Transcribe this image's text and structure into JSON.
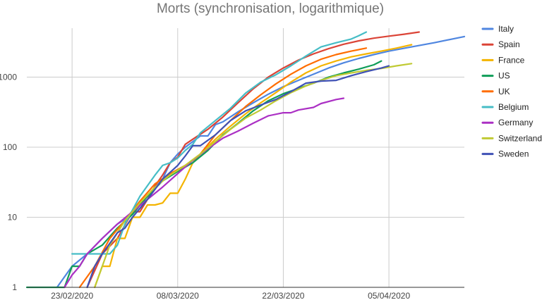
{
  "chart_data": {
    "type": "line",
    "title": "Morts (synchronisation, logarithmique)",
    "xlabel": "",
    "ylabel": "",
    "y_scale": "log",
    "ylim": [
      1,
      5000
    ],
    "y_ticks": [
      {
        "value": 1,
        "label": "1"
      },
      {
        "value": 10,
        "label": "10"
      },
      {
        "value": 100,
        "label": "100"
      },
      {
        "value": 1000,
        "label": "1000"
      }
    ],
    "xlim": [
      "2020-02-17",
      "2020-04-15"
    ],
    "x_ticks": [
      {
        "value": "2020-02-23",
        "label": "23/02/2020"
      },
      {
        "value": "2020-03-08",
        "label": "08/03/2020"
      },
      {
        "value": "2020-03-22",
        "label": "22/03/2020"
      },
      {
        "value": "2020-04-05",
        "label": "05/04/2020"
      }
    ],
    "grid": true,
    "legend_position": "right",
    "series": [
      {
        "name": "Italy",
        "color": "#4f86e0",
        "points": [
          [
            "2020-02-21",
            1
          ],
          [
            "2020-02-23",
            2
          ],
          [
            "2020-02-25",
            3
          ],
          [
            "2020-02-27",
            5
          ],
          [
            "2020-02-29",
            8
          ],
          [
            "2020-03-02",
            11
          ],
          [
            "2020-03-04",
            20
          ],
          [
            "2020-03-06",
            35
          ],
          [
            "2020-03-07",
            60
          ],
          [
            "2020-03-08",
            80
          ],
          [
            "2020-03-09",
            100
          ],
          [
            "2020-03-10",
            120
          ],
          [
            "2020-03-11",
            145
          ],
          [
            "2020-03-12",
            145
          ],
          [
            "2020-03-13",
            210
          ],
          [
            "2020-03-14",
            230
          ],
          [
            "2020-03-16",
            320
          ],
          [
            "2020-03-18",
            430
          ],
          [
            "2020-03-20",
            570
          ],
          [
            "2020-03-22",
            730
          ],
          [
            "2020-03-24",
            900
          ],
          [
            "2020-03-26",
            1100
          ],
          [
            "2020-03-28",
            1350
          ],
          [
            "2020-03-30",
            1600
          ],
          [
            "2020-04-01",
            1850
          ],
          [
            "2020-04-03",
            2100
          ],
          [
            "2020-04-05",
            2350
          ],
          [
            "2020-04-08",
            2700
          ],
          [
            "2020-04-11",
            3100
          ],
          [
            "2020-04-15",
            3800
          ]
        ]
      },
      {
        "name": "Spain",
        "color": "#db4437",
        "points": [
          [
            "2020-02-25",
            1
          ],
          [
            "2020-02-27",
            3
          ],
          [
            "2020-02-29",
            5
          ],
          [
            "2020-03-02",
            12
          ],
          [
            "2020-03-03",
            12
          ],
          [
            "2020-03-04",
            18
          ],
          [
            "2020-03-05",
            28
          ],
          [
            "2020-03-06",
            40
          ],
          [
            "2020-03-07",
            60
          ],
          [
            "2020-03-08",
            72
          ],
          [
            "2020-03-09",
            110
          ],
          [
            "2020-03-10",
            130
          ],
          [
            "2020-03-12",
            180
          ],
          [
            "2020-03-14",
            270
          ],
          [
            "2020-03-16",
            430
          ],
          [
            "2020-03-18",
            680
          ],
          [
            "2020-03-20",
            1000
          ],
          [
            "2020-03-22",
            1350
          ],
          [
            "2020-03-24",
            1750
          ],
          [
            "2020-03-26",
            2150
          ],
          [
            "2020-03-28",
            2550
          ],
          [
            "2020-03-30",
            2950
          ],
          [
            "2020-04-01",
            3300
          ],
          [
            "2020-04-03",
            3600
          ],
          [
            "2020-04-05",
            3850
          ],
          [
            "2020-04-07",
            4100
          ],
          [
            "2020-04-09",
            4400
          ]
        ]
      },
      {
        "name": "France",
        "color": "#f4b400",
        "points": [
          [
            "2020-02-26",
            1
          ],
          [
            "2020-02-27",
            2
          ],
          [
            "2020-02-28",
            2
          ],
          [
            "2020-02-29",
            5
          ],
          [
            "2020-03-01",
            5
          ],
          [
            "2020-03-02",
            10
          ],
          [
            "2020-03-03",
            10
          ],
          [
            "2020-03-04",
            15
          ],
          [
            "2020-03-05",
            15
          ],
          [
            "2020-03-06",
            16
          ],
          [
            "2020-03-07",
            22
          ],
          [
            "2020-03-08",
            22
          ],
          [
            "2020-03-09",
            35
          ],
          [
            "2020-03-10",
            60
          ],
          [
            "2020-03-11",
            80
          ],
          [
            "2020-03-13",
            130
          ],
          [
            "2020-03-15",
            200
          ],
          [
            "2020-03-17",
            300
          ],
          [
            "2020-03-19",
            430
          ],
          [
            "2020-03-21",
            600
          ],
          [
            "2020-03-23",
            850
          ],
          [
            "2020-03-25",
            1150
          ],
          [
            "2020-03-27",
            1450
          ],
          [
            "2020-03-29",
            1700
          ],
          [
            "2020-03-31",
            1950
          ],
          [
            "2020-04-02",
            2150
          ],
          [
            "2020-04-04",
            2350
          ],
          [
            "2020-04-06",
            2600
          ],
          [
            "2020-04-08",
            2900
          ]
        ]
      },
      {
        "name": "US",
        "color": "#0f9d58",
        "points": [
          [
            "2020-02-17",
            1
          ],
          [
            "2020-02-22",
            1
          ],
          [
            "2020-02-23",
            2
          ],
          [
            "2020-02-24",
            2
          ],
          [
            "2020-02-25",
            3
          ],
          [
            "2020-02-27",
            4
          ],
          [
            "2020-02-29",
            7
          ],
          [
            "2020-03-02",
            11
          ],
          [
            "2020-03-04",
            20
          ],
          [
            "2020-03-06",
            33
          ],
          [
            "2020-03-08",
            45
          ],
          [
            "2020-03-10",
            60
          ],
          [
            "2020-03-12",
            90
          ],
          [
            "2020-03-14",
            150
          ],
          [
            "2020-03-16",
            220
          ],
          [
            "2020-03-18",
            330
          ],
          [
            "2020-03-20",
            460
          ],
          [
            "2020-03-22",
            580
          ],
          [
            "2020-03-24",
            690
          ],
          [
            "2020-03-26",
            820
          ],
          [
            "2020-03-28",
            1000
          ],
          [
            "2020-03-30",
            1150
          ],
          [
            "2020-04-01",
            1300
          ],
          [
            "2020-04-03",
            1500
          ],
          [
            "2020-04-04",
            1700
          ]
        ]
      },
      {
        "name": "UK",
        "color": "#ff6d00",
        "points": [
          [
            "2020-02-24",
            1
          ],
          [
            "2020-02-26",
            2
          ],
          [
            "2020-02-28",
            5
          ],
          [
            "2020-03-01",
            9
          ],
          [
            "2020-03-03",
            17
          ],
          [
            "2020-03-05",
            30
          ],
          [
            "2020-03-07",
            42
          ],
          [
            "2020-03-09",
            55
          ],
          [
            "2020-03-11",
            80
          ],
          [
            "2020-03-13",
            150
          ],
          [
            "2020-03-15",
            240
          ],
          [
            "2020-03-17",
            380
          ],
          [
            "2020-03-19",
            560
          ],
          [
            "2020-03-21",
            800
          ],
          [
            "2020-03-23",
            1100
          ],
          [
            "2020-03-25",
            1450
          ],
          [
            "2020-03-27",
            1800
          ],
          [
            "2020-03-29",
            2100
          ],
          [
            "2020-03-31",
            2350
          ],
          [
            "2020-04-02",
            2600
          ]
        ]
      },
      {
        "name": "Belgium",
        "color": "#46bdc6",
        "points": [
          [
            "2020-02-23",
            3
          ],
          [
            "2020-02-24",
            3
          ],
          [
            "2020-02-28",
            3
          ],
          [
            "2020-02-29",
            4
          ],
          [
            "2020-03-01",
            8
          ],
          [
            "2020-03-03",
            20
          ],
          [
            "2020-03-05",
            40
          ],
          [
            "2020-03-06",
            55
          ],
          [
            "2020-03-07",
            60
          ],
          [
            "2020-03-08",
            70
          ],
          [
            "2020-03-09",
            90
          ],
          [
            "2020-03-10",
            110
          ],
          [
            "2020-03-11",
            160
          ],
          [
            "2020-03-13",
            240
          ],
          [
            "2020-03-15",
            360
          ],
          [
            "2020-03-17",
            590
          ],
          [
            "2020-03-19",
            850
          ],
          [
            "2020-03-21",
            1080
          ],
          [
            "2020-03-23",
            1450
          ],
          [
            "2020-03-25",
            2000
          ],
          [
            "2020-03-27",
            2700
          ],
          [
            "2020-03-29",
            3100
          ],
          [
            "2020-03-31",
            3500
          ],
          [
            "2020-04-01",
            3900
          ],
          [
            "2020-04-02",
            4400
          ]
        ]
      },
      {
        "name": "Germany",
        "color": "#ab30c4",
        "points": [
          [
            "2020-02-22",
            1
          ],
          [
            "2020-02-23",
            1.5
          ],
          [
            "2020-02-24",
            2
          ],
          [
            "2020-02-25",
            3
          ],
          [
            "2020-02-27",
            5
          ],
          [
            "2020-02-29",
            8
          ],
          [
            "2020-03-02",
            12
          ],
          [
            "2020-03-04",
            18
          ],
          [
            "2020-03-06",
            27
          ],
          [
            "2020-03-08",
            42
          ],
          [
            "2020-03-10",
            65
          ],
          [
            "2020-03-12",
            95
          ],
          [
            "2020-03-14",
            135
          ],
          [
            "2020-03-16",
            170
          ],
          [
            "2020-03-18",
            220
          ],
          [
            "2020-03-20",
            280
          ],
          [
            "2020-03-22",
            310
          ],
          [
            "2020-03-23",
            310
          ],
          [
            "2020-03-24",
            340
          ],
          [
            "2020-03-26",
            370
          ],
          [
            "2020-03-27",
            420
          ],
          [
            "2020-03-29",
            480
          ],
          [
            "2020-03-30",
            500
          ]
        ]
      },
      {
        "name": "Switzerland",
        "color": "#c0ca33",
        "points": [
          [
            "2020-02-26",
            1
          ],
          [
            "2020-02-27",
            2
          ],
          [
            "2020-02-28",
            4
          ],
          [
            "2020-02-29",
            6
          ],
          [
            "2020-03-01",
            9
          ],
          [
            "2020-03-03",
            16
          ],
          [
            "2020-03-05",
            27
          ],
          [
            "2020-03-07",
            40
          ],
          [
            "2020-03-09",
            55
          ],
          [
            "2020-03-11",
            80
          ],
          [
            "2020-03-13",
            120
          ],
          [
            "2020-03-15",
            180
          ],
          [
            "2020-03-17",
            260
          ],
          [
            "2020-03-19",
            340
          ],
          [
            "2020-03-21",
            460
          ],
          [
            "2020-03-23",
            600
          ],
          [
            "2020-03-25",
            750
          ],
          [
            "2020-03-27",
            900
          ],
          [
            "2020-03-29",
            1050
          ],
          [
            "2020-03-31",
            1150
          ],
          [
            "2020-04-02",
            1250
          ],
          [
            "2020-04-04",
            1330
          ],
          [
            "2020-04-06",
            1450
          ],
          [
            "2020-04-08",
            1560
          ]
        ]
      },
      {
        "name": "Sweden",
        "color": "#3f51b5",
        "points": [
          [
            "2020-02-25",
            1
          ],
          [
            "2020-02-26",
            2
          ],
          [
            "2020-02-27",
            3
          ],
          [
            "2020-02-29",
            6
          ],
          [
            "2020-03-01",
            7
          ],
          [
            "2020-03-02",
            10
          ],
          [
            "2020-03-04",
            18
          ],
          [
            "2020-03-06",
            35
          ],
          [
            "2020-03-08",
            55
          ],
          [
            "2020-03-09",
            75
          ],
          [
            "2020-03-10",
            105
          ],
          [
            "2020-03-11",
            105
          ],
          [
            "2020-03-13",
            150
          ],
          [
            "2020-03-15",
            240
          ],
          [
            "2020-03-17",
            330
          ],
          [
            "2020-03-19",
            400
          ],
          [
            "2020-03-21",
            480
          ],
          [
            "2020-03-23",
            620
          ],
          [
            "2020-03-25",
            820
          ],
          [
            "2020-03-27",
            880
          ],
          [
            "2020-03-29",
            900
          ],
          [
            "2020-03-31",
            1050
          ],
          [
            "2020-04-02",
            1200
          ],
          [
            "2020-04-04",
            1350
          ],
          [
            "2020-04-05",
            1450
          ]
        ]
      }
    ]
  }
}
